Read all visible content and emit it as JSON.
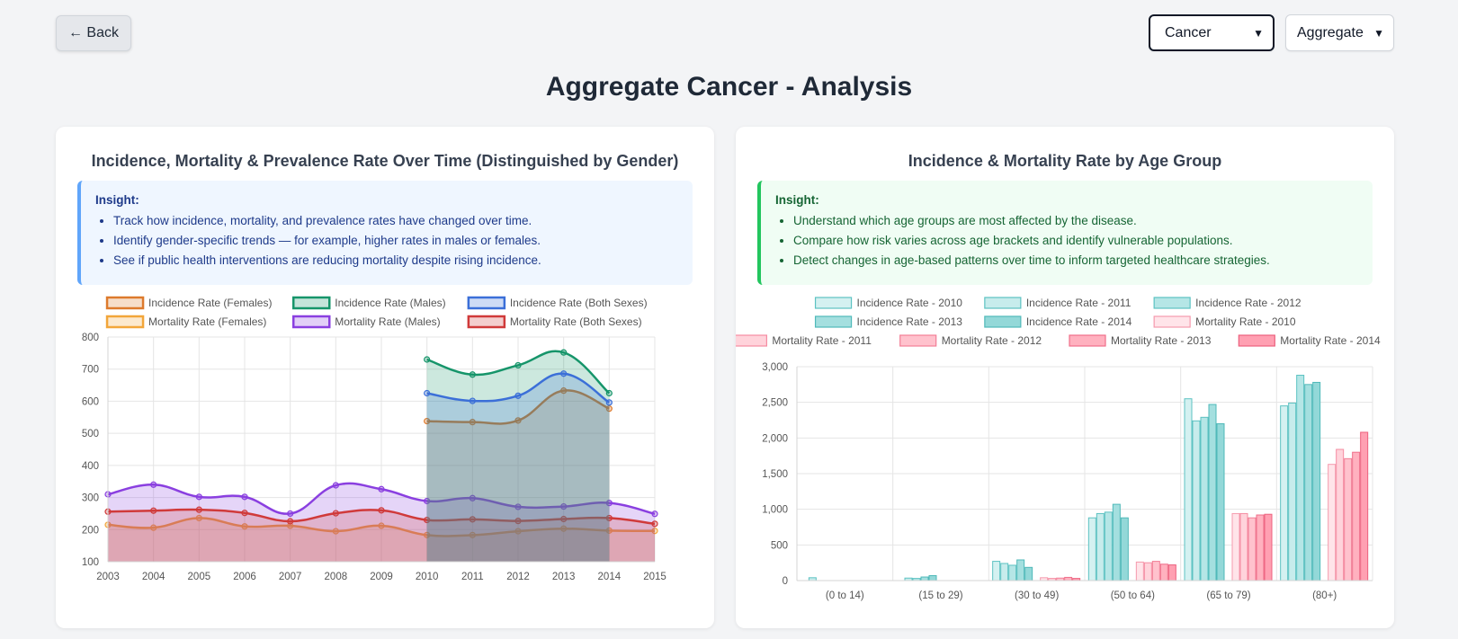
{
  "nav": {
    "back_label": "← Back"
  },
  "filters": {
    "disease": "Cancer",
    "scope": "Aggregate"
  },
  "page_title": "Aggregate Cancer - Analysis",
  "left_card": {
    "title": "Incidence, Mortality & Prevalence Rate Over Time (Distinguished by Gender)",
    "insight_label": "Insight:",
    "insights": [
      "Track how incidence, mortality, and prevalence rates have changed over time.",
      "Identify gender-specific trends — for example, higher rates in males or females.",
      "See if public health interventions are reducing mortality despite rising incidence."
    ]
  },
  "right_card": {
    "title": "Incidence & Mortality Rate by Age Group",
    "insight_label": "Insight:",
    "insights": [
      "Understand which age groups are most affected by the disease.",
      "Compare how risk varies across age brackets and identify vulnerable populations.",
      "Detect changes in age-based patterns over time to inform targeted healthcare strategies."
    ]
  },
  "chart_data": [
    {
      "type": "area",
      "x": [
        2003,
        2004,
        2005,
        2006,
        2007,
        2008,
        2009,
        2010,
        2011,
        2012,
        2013,
        2014,
        2015
      ],
      "ylim": [
        100,
        800
      ],
      "yticks": [
        100,
        200,
        300,
        400,
        500,
        600,
        700,
        800
      ],
      "legend_position": "top",
      "series": [
        {
          "name": "Incidence Rate (Females)",
          "color": "#dd7a2c",
          "values": [
            null,
            null,
            null,
            null,
            null,
            null,
            null,
            538,
            535,
            540,
            633,
            577,
            null
          ]
        },
        {
          "name": "Incidence Rate (Males)",
          "color": "#16956a",
          "values": [
            null,
            null,
            null,
            null,
            null,
            null,
            null,
            730,
            683,
            712,
            752,
            625,
            null
          ]
        },
        {
          "name": "Incidence Rate (Both Sexes)",
          "color": "#3b6fd8",
          "values": [
            null,
            null,
            null,
            null,
            null,
            null,
            null,
            625,
            601,
            617,
            686,
            596,
            null
          ]
        },
        {
          "name": "Mortality Rate (Females)",
          "color": "#f2a63a",
          "values": [
            215,
            206,
            236,
            210,
            212,
            195,
            212,
            183,
            183,
            195,
            203,
            197,
            196
          ]
        },
        {
          "name": "Mortality Rate (Males)",
          "color": "#8a3fe0",
          "values": [
            310,
            340,
            302,
            302,
            250,
            338,
            326,
            289,
            298,
            271,
            272,
            283,
            249
          ]
        },
        {
          "name": "Mortality Rate (Both Sexes)",
          "color": "#d03a3a",
          "values": [
            256,
            259,
            262,
            252,
            226,
            251,
            260,
            230,
            232,
            227,
            233,
            236,
            218
          ]
        }
      ]
    },
    {
      "type": "bar",
      "categories": [
        "(0 to 14)",
        "(15 to 29)",
        "(30 to 49)",
        "(50 to 64)",
        "(65 to 79)",
        "(80+)"
      ],
      "ylim": [
        0,
        3000
      ],
      "yticks": [
        "0",
        "500",
        "1,000",
        "1,500",
        "2,000",
        "2,500",
        "3,000"
      ],
      "legend_position": "top",
      "series": [
        {
          "name": "Incidence Rate - 2010",
          "fill": "#d4f1f1",
          "stroke": "#5cc2c2",
          "values": [
            0,
            0,
            270,
            880,
            2550,
            2450
          ]
        },
        {
          "name": "Incidence Rate - 2011",
          "fill": "#c7ecec",
          "stroke": "#5cc2c2",
          "values": [
            40,
            35,
            240,
            940,
            2240,
            2490
          ]
        },
        {
          "name": "Incidence Rate - 2012",
          "fill": "#b5e6e6",
          "stroke": "#5cc2c2",
          "values": [
            0,
            30,
            215,
            960,
            2290,
            2880
          ]
        },
        {
          "name": "Incidence Rate - 2013",
          "fill": "#a4dfdf",
          "stroke": "#4fb9b9",
          "values": [
            0,
            50,
            290,
            1070,
            2470,
            2750
          ]
        },
        {
          "name": "Incidence Rate - 2014",
          "fill": "#93d8d8",
          "stroke": "#4fb9b9",
          "values": [
            0,
            70,
            185,
            880,
            2200,
            2780
          ]
        },
        {
          "name": "Mortality Rate - 2010",
          "fill": "#ffe4e9",
          "stroke": "#f59aad",
          "values": [
            0,
            0,
            40,
            260,
            940,
            1630
          ]
        },
        {
          "name": "Mortality Rate - 2011",
          "fill": "#ffd3db",
          "stroke": "#f58ca2",
          "values": [
            0,
            0,
            30,
            250,
            940,
            1840
          ]
        },
        {
          "name": "Mortality Rate - 2012",
          "fill": "#ffc2cd",
          "stroke": "#f27e96",
          "values": [
            0,
            0,
            35,
            270,
            880,
            1710
          ]
        },
        {
          "name": "Mortality Rate - 2013",
          "fill": "#ffb1bf",
          "stroke": "#ef6f8a",
          "values": [
            0,
            0,
            45,
            230,
            920,
            1800
          ]
        },
        {
          "name": "Mortality Rate - 2014",
          "fill": "#ffa0b2",
          "stroke": "#ec617e",
          "values": [
            0,
            0,
            30,
            220,
            930,
            2080
          ]
        }
      ]
    }
  ]
}
